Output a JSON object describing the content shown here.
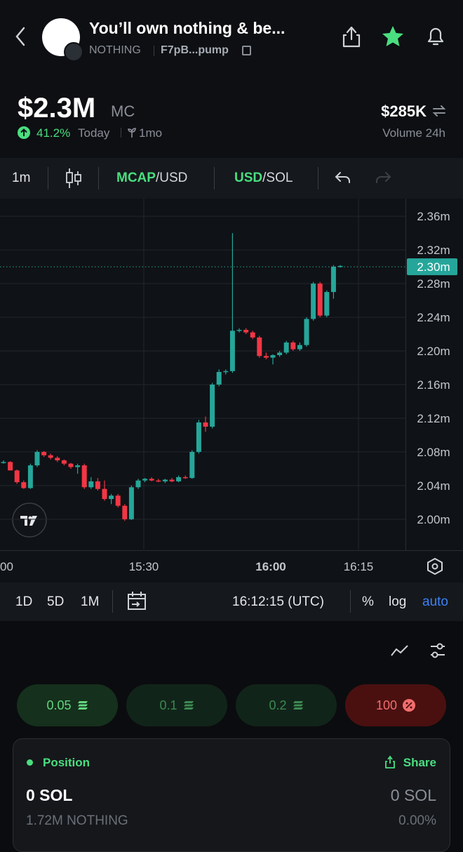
{
  "header": {
    "title": "You’ll own nothing & be...",
    "ticker": "NOTHING",
    "address": "F7pB...pump"
  },
  "stats": {
    "market_cap": "$2.3M",
    "market_cap_label": "MC",
    "change": "41.2%",
    "change_period": "Today",
    "age": "1mo",
    "volume": "$285K",
    "volume_label": "Volume 24h"
  },
  "toolbar": {
    "interval": "1m",
    "mcap": "MCAP",
    "mcap_unit": "/USD",
    "usd": "USD",
    "usd_unit": "/SOL"
  },
  "chart_data": {
    "type": "candlestick",
    "open": [
      2.068,
      2.068,
      2.058,
      2.044,
      2.037,
      2.064,
      2.08,
      2.076,
      2.073,
      2.07,
      2.066,
      2.062,
      2.064,
      2.038,
      2.045,
      2.036,
      2.024,
      2.028,
      2.016,
      2.0,
      2.038,
      2.046,
      2.048,
      2.046,
      2.045,
      2.047,
      2.045,
      2.05,
      2.049,
      2.08,
      2.115,
      2.11,
      2.16,
      2.175,
      2.176,
      2.224,
      2.225,
      2.222,
      2.216,
      2.194,
      2.192,
      2.195,
      2.198,
      2.21,
      2.202,
      2.207,
      2.238,
      2.28,
      2.242,
      2.27,
      2.3
    ],
    "high": [
      2.07,
      2.069,
      2.059,
      2.046,
      2.066,
      2.082,
      2.081,
      2.078,
      2.075,
      2.071,
      2.067,
      2.066,
      2.066,
      2.05,
      2.049,
      2.046,
      2.03,
      2.03,
      2.018,
      2.04,
      2.048,
      2.049,
      2.05,
      2.048,
      2.048,
      2.049,
      2.052,
      2.052,
      2.082,
      2.118,
      2.122,
      2.162,
      2.178,
      2.178,
      2.34,
      2.227,
      2.227,
      2.224,
      2.218,
      2.198,
      2.196,
      2.2,
      2.212,
      2.212,
      2.21,
      2.24,
      2.282,
      2.282,
      2.272,
      2.302,
      2.302
    ],
    "low": [
      2.066,
      2.058,
      2.042,
      2.036,
      2.036,
      2.062,
      2.074,
      2.071,
      2.068,
      2.064,
      2.06,
      2.054,
      2.036,
      2.036,
      2.034,
      2.022,
      2.018,
      2.014,
      1.998,
      1.999,
      2.036,
      2.044,
      2.045,
      2.044,
      2.043,
      2.044,
      2.044,
      2.048,
      2.048,
      2.078,
      2.104,
      2.108,
      2.158,
      2.172,
      2.174,
      2.222,
      2.22,
      2.214,
      2.192,
      2.19,
      2.184,
      2.193,
      2.196,
      2.2,
      2.2,
      2.205,
      2.236,
      2.24,
      2.24,
      2.262,
      2.299
    ],
    "close": [
      2.068,
      2.058,
      2.044,
      2.037,
      2.064,
      2.08,
      2.076,
      2.073,
      2.07,
      2.066,
      2.062,
      2.064,
      2.038,
      2.045,
      2.036,
      2.024,
      2.028,
      2.016,
      2.0,
      2.038,
      2.046,
      2.048,
      2.046,
      2.045,
      2.047,
      2.045,
      2.05,
      2.049,
      2.08,
      2.115,
      2.11,
      2.16,
      2.175,
      2.176,
      2.224,
      2.225,
      2.222,
      2.216,
      2.194,
      2.192,
      2.195,
      2.198,
      2.21,
      2.202,
      2.207,
      2.238,
      2.28,
      2.242,
      2.27,
      2.3,
      2.301
    ],
    "up_color": "#26a69a",
    "down_color": "#f23645",
    "ylim": [
      1.964,
      2.381
    ],
    "yticks": [
      {
        "value": 2.0,
        "label": "2.00m"
      },
      {
        "value": 2.04,
        "label": "2.04m"
      },
      {
        "value": 2.08,
        "label": "2.08m"
      },
      {
        "value": 2.12,
        "label": "2.12m"
      },
      {
        "value": 2.16,
        "label": "2.16m"
      },
      {
        "value": 2.2,
        "label": "2.20m"
      },
      {
        "value": 2.24,
        "label": "2.24m"
      },
      {
        "value": 2.28,
        "label": "2.28m"
      },
      {
        "value": 2.32,
        "label": "2.32m"
      },
      {
        "value": 2.36,
        "label": "2.36m"
      }
    ],
    "last_price": {
      "value": 2.3,
      "label": "2.30m"
    },
    "xtick_labels": [
      "00",
      "15:30",
      "16:00",
      "16:15"
    ],
    "grid": true
  },
  "bottom_bar": {
    "ranges": [
      "1D",
      "5D",
      "1M"
    ],
    "time": "16:12:15 (UTC)",
    "percent": "%",
    "log": "log",
    "auto": "auto"
  },
  "quick_buy": [
    "0.05",
    "0.1",
    "0.2",
    "100"
  ],
  "position": {
    "title": "Position",
    "share": "Share",
    "sol_left": "0 SOL",
    "sol_right": "0 SOL",
    "tokens": "1.72M NOTHING",
    "percent": "0.00%"
  }
}
